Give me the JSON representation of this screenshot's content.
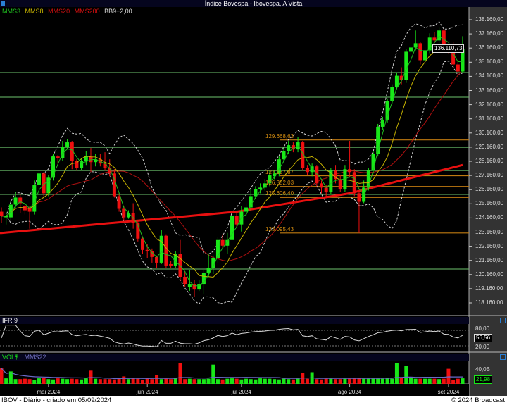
{
  "window_title": "Índice Bovespa - Ibovespa, A Vista",
  "legend": [
    {
      "label": "MMS3",
      "color": "#1fbf1f"
    },
    {
      "label": "MMS8",
      "color": "#c8b400"
    },
    {
      "label": "MMS20",
      "color": "#d01010"
    },
    {
      "label": "MMS200",
      "color": "#e01010"
    },
    {
      "label": "BB9±2,00",
      "color": "#dddddd"
    }
  ],
  "footer": {
    "left": "IBOV - Diário - criado em 05/09/2024",
    "right": "© 2024 Broadcast"
  },
  "colors": {
    "up": "#18e818",
    "down": "#f01010",
    "hline": "#6ec46e",
    "fib": "#c07a10",
    "axis_bg": "#333333"
  },
  "chart_data": [
    {
      "type": "candlestick",
      "title": "",
      "y_ticks": [
        "138.160,00",
        "137.160,00",
        "136.160,00",
        "135.160,00",
        "134.160,00",
        "133.160,00",
        "132.160,00",
        "131.160,00",
        "130.160,00",
        "129.160,00",
        "128.160,00",
        "127.160,00",
        "126.160,00",
        "125.160,00",
        "124.160,00",
        "123.160,00",
        "122.160,00",
        "121.160,00",
        "120.160,00",
        "119.160,00",
        "118.160,00"
      ],
      "ylim": [
        117300,
        138900
      ],
      "last_price_label": "136.110,73",
      "x_month_labels": [
        {
          "label": "mai 2024",
          "index": 10
        },
        {
          "label": "jun 2024",
          "index": 31
        },
        {
          "label": "jul 2024",
          "index": 51
        },
        {
          "label": "ago 2024",
          "index": 74
        },
        {
          "label": "set 2024",
          "index": 95
        }
      ],
      "ohlc_thousands": [
        [
          124.6,
          124.9,
          123.8,
          124.3
        ],
        [
          124.2,
          124.6,
          123.7,
          124.3
        ],
        [
          124.2,
          125.3,
          124.0,
          125.1
        ],
        [
          125.1,
          126.0,
          124.9,
          125.6
        ],
        [
          125.6,
          125.8,
          124.5,
          125.2
        ],
        [
          125.0,
          125.2,
          124.4,
          124.7
        ],
        [
          124.9,
          125.0,
          123.4,
          124.6
        ],
        [
          124.6,
          126.8,
          124.4,
          126.5
        ],
        [
          126.5,
          127.5,
          126.2,
          127.3
        ],
        [
          127.3,
          127.4,
          125.7,
          125.9
        ],
        [
          125.9,
          127.2,
          125.7,
          127.0
        ],
        [
          127.0,
          128.7,
          126.8,
          128.5
        ],
        [
          128.5,
          128.6,
          128.0,
          128.4
        ],
        [
          128.4,
          129.6,
          128.2,
          129.2
        ],
        [
          129.2,
          129.7,
          129.0,
          129.5
        ],
        [
          129.5,
          129.6,
          127.6,
          128.2
        ],
        [
          128.2,
          128.3,
          127.5,
          127.7
        ],
        [
          127.7,
          128.4,
          127.5,
          128.2
        ],
        [
          128.2,
          128.9,
          127.9,
          128.5
        ],
        [
          128.5,
          129.1,
          127.4,
          128.1
        ],
        [
          128.1,
          128.7,
          127.8,
          128.3
        ],
        [
          128.3,
          128.7,
          127.8,
          128.0
        ],
        [
          128.0,
          128.8,
          127.5,
          127.7
        ],
        [
          127.7,
          128.3,
          127.1,
          127.3
        ],
        [
          127.3,
          127.6,
          125.6,
          125.7
        ],
        [
          125.7,
          125.9,
          124.6,
          124.8
        ],
        [
          124.8,
          125.0,
          124.0,
          124.2
        ],
        [
          124.2,
          124.7,
          124.1,
          124.5
        ],
        [
          124.5,
          125.2,
          123.4,
          123.8
        ],
        [
          123.8,
          123.9,
          122.5,
          122.7
        ],
        [
          122.7,
          122.8,
          121.6,
          121.9
        ],
        [
          121.9,
          122.3,
          121.3,
          121.8
        ],
        [
          121.8,
          122.0,
          121.0,
          121.4
        ],
        [
          121.4,
          121.5,
          120.6,
          121.0
        ],
        [
          121.0,
          123.3,
          120.9,
          122.9
        ],
        [
          122.9,
          123.0,
          120.6,
          120.8
        ],
        [
          120.9,
          121.1,
          120.6,
          120.8
        ],
        [
          120.8,
          121.8,
          120.6,
          121.6
        ],
        [
          121.6,
          122.6,
          119.7,
          120.0
        ],
        [
          120.0,
          120.4,
          119.3,
          119.5
        ],
        [
          119.3,
          120.5,
          119.0,
          119.5
        ],
        [
          119.5,
          119.8,
          118.6,
          119.1
        ],
        [
          119.1,
          119.8,
          119.0,
          119.5
        ],
        [
          119.5,
          120.5,
          118.8,
          120.3
        ],
        [
          120.3,
          121.6,
          120.0,
          120.6
        ],
        [
          120.6,
          121.5,
          120.2,
          121.3
        ],
        [
          121.3,
          122.8,
          121.0,
          122.6
        ],
        [
          122.6,
          123.0,
          122.0,
          122.2
        ],
        [
          122.2,
          123.1,
          121.6,
          122.6
        ],
        [
          122.6,
          124.4,
          122.4,
          124.3
        ],
        [
          124.3,
          124.5,
          123.5,
          123.7
        ],
        [
          123.7,
          125.0,
          123.2,
          124.6
        ],
        [
          124.6,
          125.2,
          124.3,
          124.9
        ],
        [
          124.9,
          126.2,
          124.7,
          125.7
        ],
        [
          125.7,
          126.4,
          125.5,
          126.2
        ],
        [
          126.2,
          126.6,
          125.9,
          126.3
        ],
        [
          126.3,
          126.9,
          126.1,
          126.6
        ],
        [
          126.6,
          127.5,
          126.4,
          127.2
        ],
        [
          127.1,
          127.5,
          126.9,
          127.3
        ],
        [
          127.3,
          128.5,
          127.1,
          128.3
        ],
        [
          128.3,
          129.2,
          128.1,
          128.9
        ],
        [
          128.9,
          129.6,
          128.7,
          129.3
        ],
        [
          129.3,
          129.5,
          128.8,
          129.0
        ],
        [
          129.0,
          129.9,
          128.8,
          129.5
        ],
        [
          129.5,
          129.6,
          127.5,
          127.7
        ],
        [
          127.7,
          127.9,
          127.2,
          127.4
        ],
        [
          127.4,
          128.0,
          127.1,
          127.8
        ],
        [
          127.8,
          127.9,
          126.4,
          126.6
        ],
        [
          126.6,
          126.8,
          125.9,
          126.3
        ],
        [
          126.3,
          126.5,
          125.6,
          126.0
        ],
        [
          126.0,
          127.7,
          125.8,
          127.5
        ],
        [
          127.5,
          127.9,
          126.6,
          126.9
        ],
        [
          126.9,
          127.2,
          126.0,
          126.2
        ],
        [
          126.2,
          127.9,
          126.0,
          127.6
        ],
        [
          127.6,
          129.6,
          127.0,
          127.4
        ],
        [
          127.4,
          127.6,
          125.7,
          125.9
        ],
        [
          125.9,
          126.0,
          123.1,
          125.3
        ],
        [
          125.3,
          126.8,
          125.2,
          126.3
        ],
        [
          126.3,
          127.7,
          126.1,
          127.5
        ],
        [
          127.5,
          128.9,
          127.3,
          128.7
        ],
        [
          128.7,
          130.8,
          128.5,
          130.6
        ],
        [
          130.6,
          131.3,
          130.4,
          131.1
        ],
        [
          131.1,
          132.6,
          130.9,
          132.4
        ],
        [
          132.4,
          133.6,
          132.2,
          133.4
        ],
        [
          133.4,
          134.4,
          133.2,
          134.2
        ],
        [
          134.2,
          134.8,
          133.6,
          133.9
        ],
        [
          133.9,
          136.1,
          133.7,
          135.9
        ],
        [
          135.9,
          136.6,
          135.7,
          136.2
        ],
        [
          136.2,
          137.4,
          136.0,
          136.5
        ],
        [
          136.5,
          136.6,
          135.0,
          135.3
        ],
        [
          135.3,
          136.2,
          135.0,
          136.0
        ],
        [
          136.0,
          137.2,
          135.8,
          136.9
        ],
        [
          136.9,
          137.3,
          136.5,
          136.7
        ],
        [
          136.7,
          137.6,
          136.5,
          137.4
        ],
        [
          137.4,
          137.5,
          136.0,
          136.2
        ],
        [
          136.2,
          136.3,
          135.8,
          136.1
        ],
        [
          136.1,
          136.6,
          134.8,
          135.0
        ],
        [
          135.0,
          135.3,
          134.3,
          134.5
        ],
        [
          134.5,
          137.0,
          134.4,
          136.11
        ]
      ],
      "mms200_points": [
        {
          "index": 0,
          "value": 123.1
        },
        {
          "index": 50,
          "value": 124.6
        },
        {
          "index": 74,
          "value": 125.9
        },
        {
          "index": 98,
          "value": 127.9
        }
      ],
      "horizontal_lines": [
        134.43,
        132.69,
        129.15,
        127.51,
        125.82,
        120.55
      ],
      "fibonacci_levels": [
        {
          "label": "129.668,63",
          "value": 129.669
        },
        {
          "label": "127.137,87",
          "value": 127.138
        },
        {
          "label": "126.382,03",
          "value": 126.382
        },
        {
          "label": "125.606,40",
          "value": 125.606
        },
        {
          "label": "123.095,43",
          "value": 123.095
        }
      ]
    },
    {
      "type": "line",
      "title": "IFR 9",
      "ylim": [
        0,
        100
      ],
      "y_ticks": [
        "80,00",
        "20,00"
      ],
      "last_value_label": "56,56"
    },
    {
      "type": "bar",
      "title": "VOL$",
      "series_label": "MMS22",
      "unit": "B",
      "y_ticks": [
        "40,0B"
      ],
      "last_value_label": "21,98",
      "values": [
        48,
        22,
        40,
        20,
        20,
        21,
        20,
        18,
        22,
        23,
        20,
        19,
        22,
        21,
        20,
        21,
        20,
        19,
        22,
        42,
        21,
        20,
        20,
        20,
        19,
        21,
        27,
        20,
        22,
        21,
        17,
        22,
        20,
        30,
        20,
        21,
        20,
        22,
        62,
        20,
        21,
        20,
        20,
        20,
        21,
        58,
        20,
        19,
        21,
        22,
        21,
        19,
        21,
        20,
        19,
        22,
        21,
        21,
        20,
        19,
        21,
        20,
        19,
        21,
        36,
        21,
        38,
        20,
        19,
        21,
        21,
        20,
        20,
        21,
        21,
        22,
        22,
        21,
        21,
        21,
        21,
        21,
        23,
        21,
        62,
        24,
        55,
        23,
        21,
        21,
        21,
        21,
        21,
        20,
        21,
        47,
        17,
        21,
        22
      ]
    }
  ]
}
